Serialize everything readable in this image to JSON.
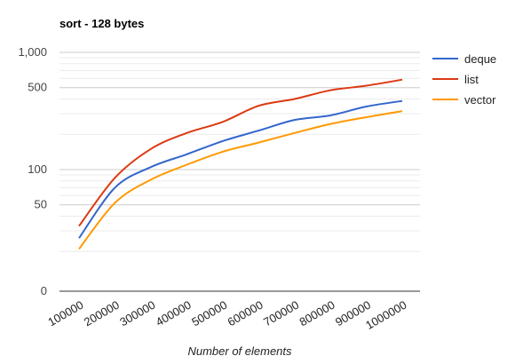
{
  "chart_data": {
    "type": "line",
    "title": "sort - 128 bytes",
    "xlabel": "Number of elements",
    "ylabel": "",
    "y_scale": "log",
    "y_ticks": [
      {
        "value": 1000,
        "label": "1,000"
      },
      {
        "value": 500,
        "label": "500"
      },
      {
        "value": 100,
        "label": "100"
      },
      {
        "value": 50,
        "label": "50"
      },
      {
        "value": 0,
        "label": "0"
      }
    ],
    "x_ticks": [
      "100000",
      "200000",
      "300000",
      "400000",
      "500000",
      "600000",
      "700000",
      "800000",
      "900000",
      "1000000"
    ],
    "x": [
      100000,
      200000,
      300000,
      400000,
      500000,
      600000,
      700000,
      800000,
      900000,
      1000000
    ],
    "legend_position": "right",
    "series": [
      {
        "name": "deque",
        "color": "#3366cc",
        "values": [
          26,
          70,
          105,
          135,
          175,
          215,
          265,
          290,
          345,
          385
        ]
      },
      {
        "name": "list",
        "color": "#dc3912",
        "values": [
          33,
          85,
          150,
          205,
          255,
          350,
          400,
          475,
          520,
          585
        ]
      },
      {
        "name": "vector",
        "color": "#ff9900",
        "values": [
          21,
          52,
          82,
          110,
          142,
          170,
          205,
          245,
          280,
          315
        ]
      }
    ],
    "grid": true
  }
}
